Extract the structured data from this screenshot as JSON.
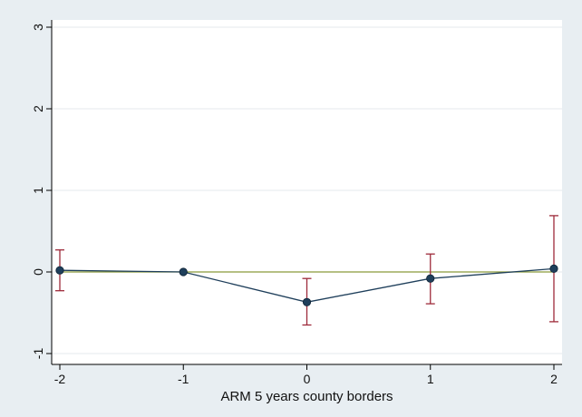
{
  "chart_data": {
    "type": "line",
    "title": "",
    "xlabel": "ARM 5 years county borders",
    "ylabel": "",
    "x": [
      -2,
      -1,
      0,
      1,
      2
    ],
    "series": [
      {
        "values": [
          0.02,
          0.0,
          -0.37,
          -0.08,
          0.04
        ],
        "ci_lower": [
          -0.23,
          0.0,
          -0.65,
          -0.39,
          -0.61
        ],
        "ci_upper": [
          0.27,
          0.0,
          -0.08,
          0.22,
          0.69
        ]
      }
    ],
    "reference_line": {
      "y": 0
    },
    "xlim": [
      -2,
      2
    ],
    "ylim": [
      -1,
      3
    ],
    "xticks": [
      "-2",
      "-1",
      "0",
      "1",
      "2"
    ],
    "yticks": [
      "-1",
      "0",
      "1",
      "2",
      "3"
    ],
    "grid": "horizontal",
    "colors": {
      "line": "#1f3f5b",
      "marker": "#1f3f5b",
      "ci": "#9e2a3a",
      "reference": "#8a9a3b",
      "grid": "#e6eaee",
      "plot_bg": "#ffffff",
      "outer_bg": "#e8eef2"
    }
  }
}
